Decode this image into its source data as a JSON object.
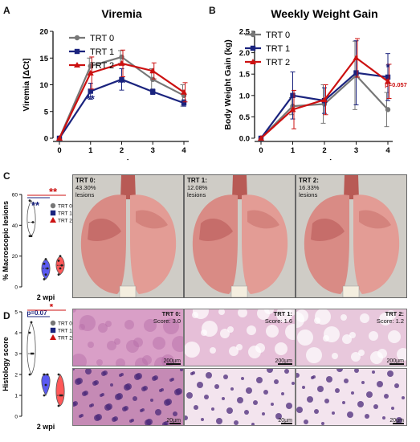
{
  "panels": {
    "A": {
      "letter": "A"
    },
    "B": {
      "letter": "B"
    },
    "C": {
      "letter": "C",
      "xlabel": "2 wpi",
      "ylabel": "% Macroscopic lesions"
    },
    "D": {
      "letter": "D",
      "xlabel": "2 wpi",
      "ylabel": "Histology score"
    }
  },
  "groups": [
    {
      "name": "TRT 0",
      "color": "#777777"
    },
    {
      "name": "TRT 1",
      "color": "#1a237e"
    },
    {
      "name": "TRT 2",
      "color": "#cc1111"
    }
  ],
  "chart_data": [
    {
      "type": "line",
      "title": "Viremia",
      "xlabel": "wpi",
      "ylabel": "Viremia [ΔCt]",
      "x": [
        0,
        1,
        2,
        3,
        4
      ],
      "ylim": [
        0,
        20
      ],
      "yticks": [
        0,
        5,
        10,
        15,
        20
      ],
      "series": [
        {
          "name": "TRT 0",
          "values": [
            0,
            13.5,
            15.2,
            11.0,
            8.0
          ],
          "err": [
            0,
            1.5,
            1.2,
            2.0,
            2.0
          ]
        },
        {
          "name": "TRT 1",
          "values": [
            0,
            8.8,
            11.0,
            8.7,
            6.6
          ],
          "err": [
            0,
            1.5,
            2.0,
            0.5,
            0.6
          ]
        },
        {
          "name": "TRT 2",
          "values": [
            0,
            12.2,
            14.0,
            12.6,
            8.6
          ],
          "err": [
            0,
            3.0,
            2.5,
            1.5,
            1.8
          ]
        }
      ],
      "annotations": [
        {
          "x": 1,
          "y": 6.7,
          "text": "**",
          "color": "#1a237e"
        },
        {
          "x": 2,
          "y": 9.7,
          "text": "**",
          "color": "#1a237e"
        }
      ]
    },
    {
      "type": "line",
      "title": "Weekly Weight Gain",
      "xlabel": "wpi",
      "ylabel": "Body Weight Gain (kg)",
      "x": [
        0,
        1,
        2,
        3,
        4
      ],
      "ylim": [
        0,
        2.5
      ],
      "yticks": [
        0.0,
        0.5,
        1.0,
        1.5,
        2.0,
        2.5
      ],
      "series": [
        {
          "name": "TRT 0",
          "values": [
            0,
            0.75,
            0.8,
            1.47,
            0.67
          ],
          "err": [
            0,
            0.2,
            0.45,
            0.8,
            0.4
          ]
        },
        {
          "name": "TRT 1",
          "values": [
            0,
            1.0,
            0.88,
            1.53,
            1.43
          ],
          "err": [
            0,
            0.55,
            0.3,
            0.75,
            0.55
          ]
        },
        {
          "name": "TRT 2",
          "values": [
            0,
            0.67,
            0.9,
            1.88,
            1.33
          ],
          "err": [
            0,
            0.45,
            0.35,
            0.45,
            0.4
          ]
        }
      ],
      "annotations": [
        {
          "x": 4,
          "y": 1.58,
          "text": "*",
          "color": "#1a237e"
        },
        {
          "x": 4,
          "y": 1.2,
          "text": "p=0.057",
          "color": "#cc1111"
        }
      ]
    }
  ],
  "legend": [
    "TRT 0",
    "TRT 1",
    "TRT 2"
  ],
  "violin_C": {
    "ylim": [
      0,
      60
    ],
    "yticks": [
      0,
      20,
      40,
      60
    ],
    "groups": [
      {
        "name": "TRT 0",
        "points": [
          33,
          33,
          42,
          56
        ]
      },
      {
        "name": "TRT 1",
        "points": [
          5,
          8,
          12,
          15,
          18
        ]
      },
      {
        "name": "TRT 2",
        "points": [
          8,
          12,
          14,
          17,
          20
        ]
      }
    ],
    "sig": [
      {
        "text": "**",
        "color": "#1a237e"
      },
      {
        "text": "**",
        "color": "#cc1111"
      }
    ]
  },
  "violin_D": {
    "ylim": [
      0,
      5
    ],
    "yticks": [
      0,
      1,
      2,
      3,
      4,
      5
    ],
    "groups": [
      {
        "name": "TRT 0",
        "points": [
          2.0,
          3.0,
          3.0,
          4.0,
          4.5
        ]
      },
      {
        "name": "TRT 1",
        "points": [
          1.0,
          1.5,
          2.0,
          2.0
        ]
      },
      {
        "name": "TRT 2",
        "points": [
          0.5,
          1.0,
          1.0,
          2.0
        ]
      }
    ],
    "sig": [
      {
        "text": "p=0.07",
        "color": "#1a237e"
      },
      {
        "text": "*",
        "color": "#cc1111"
      }
    ]
  },
  "lung_photos": [
    {
      "title": "TRT 0:",
      "value": "43.30%",
      "sub": "lesions"
    },
    {
      "title": "TRT 1:",
      "value": "12.08%",
      "sub": "lesions"
    },
    {
      "title": "TRT 2:",
      "value": "16.33%",
      "sub": "lesions"
    }
  ],
  "histology_top": [
    {
      "title": "TRT 0:",
      "score": "Score: 3.0",
      "scale": "200µm"
    },
    {
      "title": "TRT 1:",
      "score": "Score: 1.6",
      "scale": "200µm"
    },
    {
      "title": "TRT 2:",
      "score": "Score: 1.2",
      "scale": "200µm"
    }
  ],
  "histology_bottom": [
    {
      "scale": "20µm"
    },
    {
      "scale": "20µm"
    },
    {
      "scale": "20µm"
    }
  ]
}
